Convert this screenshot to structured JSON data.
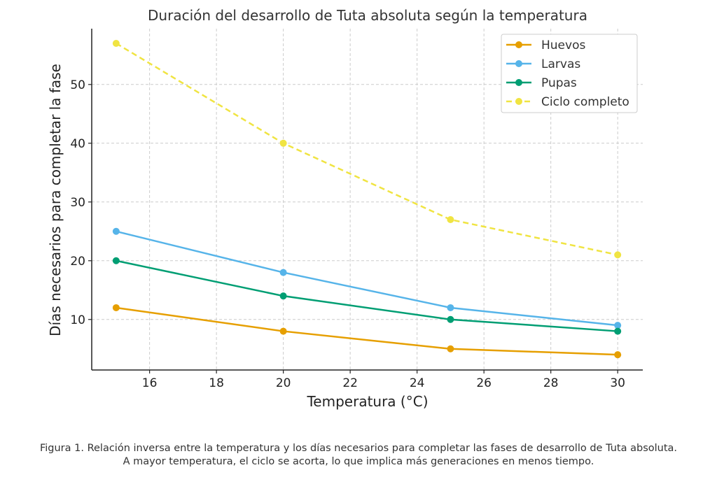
{
  "chart_data": {
    "type": "line",
    "title": "Duración del desarrollo de Tuta absoluta según la temperatura",
    "xlabel": "Temperatura (°C)",
    "ylabel": "Días necesarios para completar la fase",
    "x": [
      15,
      20,
      25,
      30
    ],
    "xlim": [
      14.27,
      30.75
    ],
    "ylim": [
      1.4,
      59.5
    ],
    "xticks": [
      16,
      18,
      20,
      22,
      24,
      26,
      28,
      30
    ],
    "yticks": [
      10,
      20,
      30,
      40,
      50
    ],
    "grid": true,
    "legend_position": "top-right",
    "series": [
      {
        "name": "Huevos",
        "values": [
          12,
          8,
          5,
          4
        ],
        "color": "#E69F00",
        "dashed": false
      },
      {
        "name": "Larvas",
        "values": [
          25,
          18,
          12,
          9
        ],
        "color": "#56B4E9",
        "dashed": false
      },
      {
        "name": "Pupas",
        "values": [
          20,
          14,
          10,
          8
        ],
        "color": "#009E73",
        "dashed": false
      },
      {
        "name": "Ciclo completo",
        "values": [
          57,
          40,
          27,
          21
        ],
        "color": "#F0E442",
        "dashed": true
      }
    ]
  },
  "caption": {
    "line1": "Figura 1. Relación inversa entre la temperatura y los días necesarios para completar las fases de desarrollo de Tuta absoluta.",
    "line2": "A mayor temperatura, el ciclo se acorta, lo que implica más generaciones en menos tiempo."
  }
}
